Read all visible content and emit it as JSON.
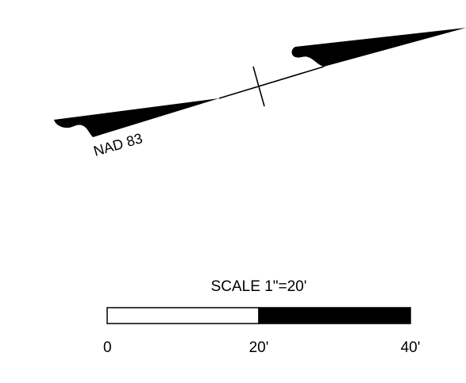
{
  "north_arrow": {
    "datum_label": "NAD 83",
    "icon": "north-arrow-icon"
  },
  "scale_bar": {
    "title": "SCALE 1\"=20'",
    "ticks": [
      "0",
      "20'",
      "40'"
    ],
    "segments": [
      {
        "name": "first",
        "fill": "#ffffff"
      },
      {
        "name": "second",
        "fill": "#000000"
      }
    ]
  },
  "colors": {
    "ink": "#000000",
    "paper": "#ffffff"
  }
}
